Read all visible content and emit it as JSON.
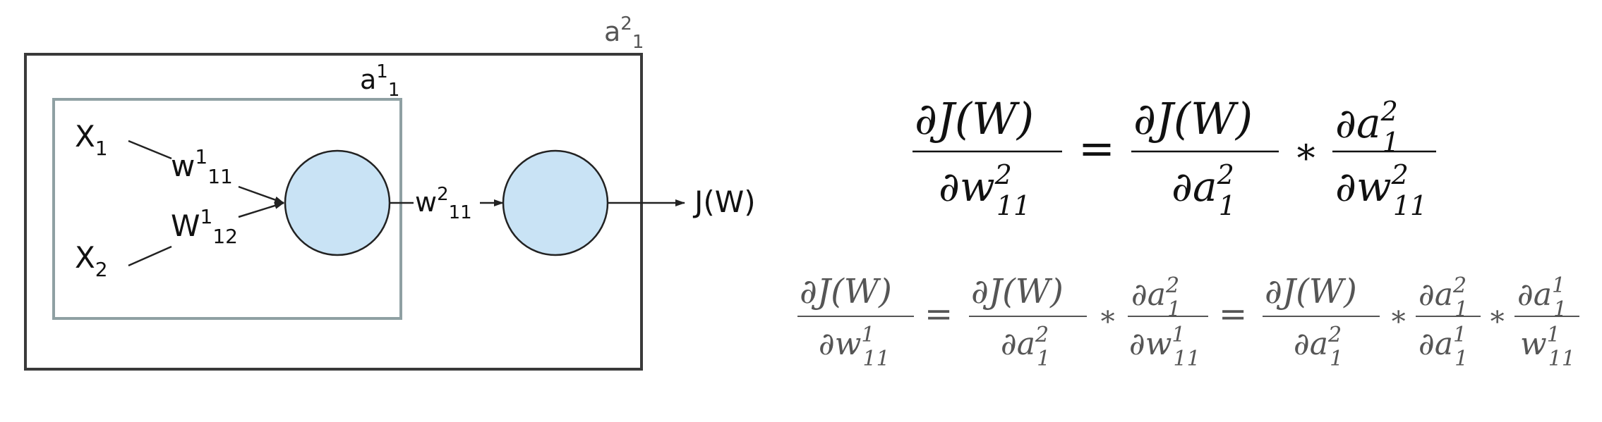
{
  "diagram": {
    "inputs": {
      "x1": {
        "base": "X",
        "sub": "1"
      },
      "x2": {
        "base": "X",
        "sub": "2"
      }
    },
    "weights": {
      "w1_11": {
        "base": "w",
        "sup": "1",
        "sub": "11"
      },
      "w1_12": {
        "base": "W",
        "sup": "1",
        "sub": "12"
      },
      "w2_11": {
        "base": "w",
        "sup": "2",
        "sub": "11"
      }
    },
    "boxes": {
      "inner": {
        "base": "a",
        "sup": "1",
        "sub": "1"
      },
      "outer": {
        "base": "a",
        "sup": "2",
        "sub": "1"
      }
    },
    "output_label": "J(W)",
    "colors": {
      "neuron_fill": "#c9e3f5",
      "inner_box": "#8fa0a3",
      "outer_box": "#3a3a3a",
      "lines": "#222222"
    }
  },
  "equations": {
    "eq1": {
      "lhs": {
        "num": "∂J(W)",
        "den_base": "∂w",
        "den_sup": "2",
        "den_sub": "11"
      },
      "eq": "=",
      "t1": {
        "num": "∂J(W)",
        "den_base": "∂a",
        "den_sup": "2",
        "den_sub": "1"
      },
      "op": "∗",
      "t2": {
        "num_base": "∂a",
        "num_sup": "2",
        "num_sub": "1",
        "den_base": "∂w",
        "den_sup": "2",
        "den_sub": "11"
      }
    },
    "eq2": {
      "lhs": {
        "num": "∂J(W)",
        "den_base": "∂w",
        "den_sup": "1",
        "den_sub": "11"
      },
      "eq1": "=",
      "a": {
        "num": "∂J(W)",
        "den_base": "∂a",
        "den_sup": "2",
        "den_sub": "1"
      },
      "op1": "∗",
      "b": {
        "num_base": "∂a",
        "num_sup": "2",
        "num_sub": "1",
        "den_base": "∂w",
        "den_sup": "1",
        "den_sub": "11"
      },
      "eq2": "=",
      "c": {
        "num": "∂J(W)",
        "den_base": "∂a",
        "den_sup": "2",
        "den_sub": "1"
      },
      "op2": "∗",
      "d": {
        "num_base": "∂a",
        "num_sup": "2",
        "num_sub": "1",
        "den_base": "∂a",
        "den_sup": "1",
        "den_sub": "1"
      },
      "op3": "∗",
      "e": {
        "num_base": "∂a",
        "num_sup": "1",
        "num_sub": "1",
        "den_base": "w",
        "den_sup": "1",
        "den_sub": "11"
      }
    }
  }
}
